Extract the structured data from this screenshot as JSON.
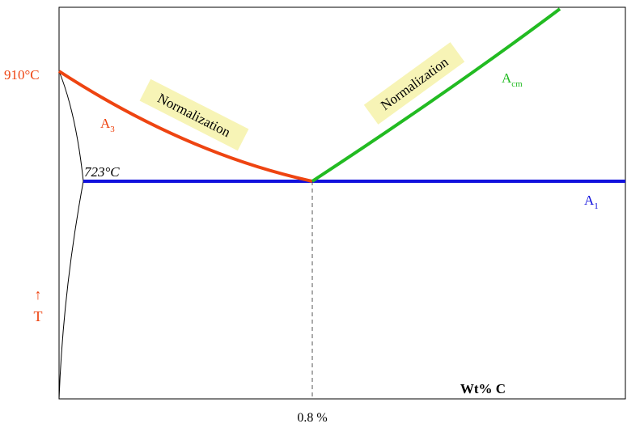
{
  "labels": {
    "temp_910": "910°C",
    "temp_723": "723°C",
    "a3": "A",
    "a3_sub": "3",
    "acm": "A",
    "acm_sub": "cm",
    "a1": "A",
    "a1_sub": "1",
    "normalization_left": "Normalization",
    "normalization_right": "Normalization",
    "t_arrow": "↑",
    "t_label": "T",
    "x_axis_title": "Wt% C",
    "eutectoid_composition": "0.8 %"
  },
  "colors": {
    "a3_line": "#ee4411",
    "acm_line": "#22bb22",
    "a1_line": "#1111dd",
    "normalization_box": "#f7f4b6",
    "temp_910": "#ee4411",
    "t_label": "#ee4411",
    "a1_label": "#1111dd",
    "acm_label": "#22bb22",
    "a3_label": "#ee4411"
  }
}
